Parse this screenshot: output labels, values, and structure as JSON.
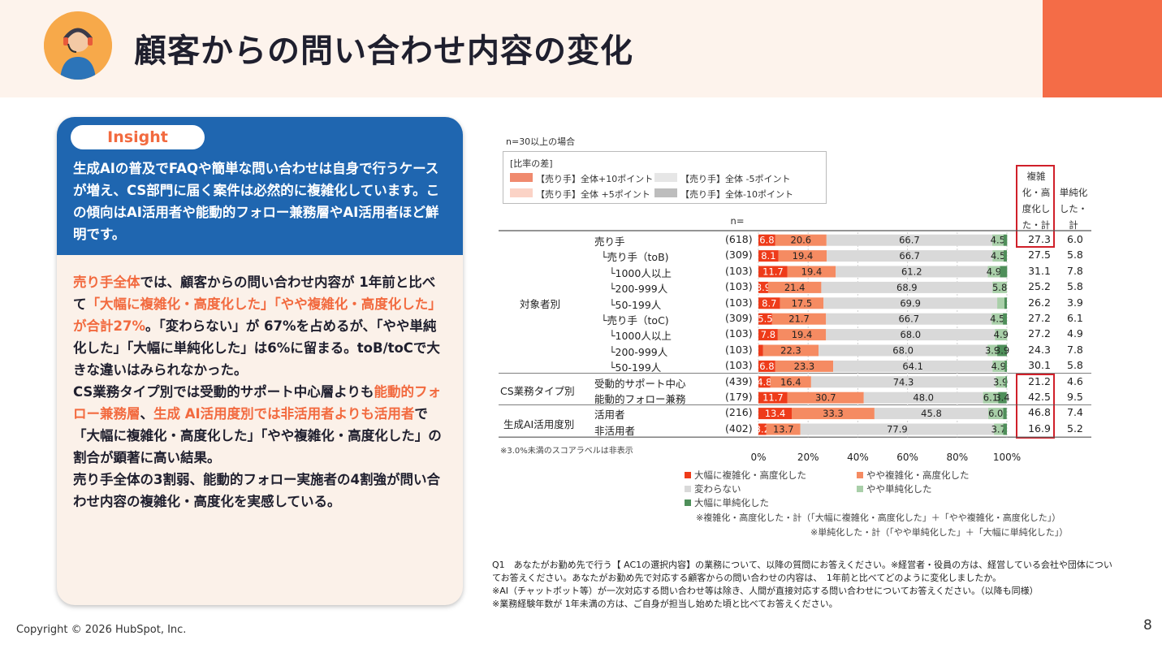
{
  "header": {
    "title": "顧客からの問い合わせ内容の変化"
  },
  "insight": {
    "label": "Insight",
    "text": "生成AIの普及でFAQや簡単な問い合わせは自身で行うケースが増え、CS部門に届く案件は必然的に複雑化しています。この傾向はAI活用者や能動的フォロー兼務層やAI活用者ほど鮮明です。"
  },
  "body": {
    "p1_a": "売り手全体",
    "p1_b": "では、顧客からの問い合わせ内容が 1年前と比べて",
    "p1_c": "「大幅に複雑化・高度化した」「やや複雑化・高度化した」が合計27%",
    "p1_d": "。「変わらない」が 67%を占めるが、「やや単純化した」「大幅に単純化した」は6%に留まる。toB/toCで大きな違いはみられなかった。",
    "p2_a": "CS業務タイプ別では受動的サポート中心層よりも",
    "p2_b": "能動的フォロー兼務層",
    "p2_c": "、",
    "p2_d": "生成 AI活用度別では非活用者よりも活用者",
    "p2_e": "で「大幅に複雑化・高度化した」「やや複雑化・高度化した」の割合が顕著に高い結果。",
    "p3": "売り手全体の3割弱、能動的フォロー実施者の4割強が問い合わせ内容の複雑化・高度化を実感している。"
  },
  "chart_note": "n=30以上の場合",
  "legend_box": {
    "title": "[比率の差]",
    "items": [
      "【売り手】全体+10ポイント",
      "【売り手】全体 +5ポイント",
      "【売り手】全体 -5ポイント",
      "【売り手】全体-10ポイント"
    ],
    "colors": [
      "#f08a6e",
      "#fbd3c6",
      "#e6e6e6",
      "#bdbdbd"
    ]
  },
  "col_headers": {
    "n": "n=",
    "complex": "複雑化・高度化した・計",
    "simple": "単純化した・計"
  },
  "group_labels": {
    "target": "対象者別",
    "cs": "CS業務タイプ別",
    "ai": "生成AI活用度別"
  },
  "annotation_under": "※3.0%未満のスコアラベルは非表示",
  "colors": {
    "dark_red": "#ee3b1a",
    "salmon": "#f58b62",
    "gray": "#d9d9d9",
    "light_green": "#a9cfa9",
    "dark_green": "#4f8f5a",
    "accent": "#f46c47",
    "blue": "#1f66b0"
  },
  "chart_data": {
    "type": "bar",
    "orientation": "horizontal-stacked-100",
    "series": [
      {
        "name": "大幅に複雑化・高度化した"
      },
      {
        "name": "やや複雑化・高度化した"
      },
      {
        "name": "変わらない"
      },
      {
        "name": "やや単純化した"
      },
      {
        "name": "大幅に単純化した"
      }
    ],
    "xlim": [
      0,
      100
    ],
    "xticks": [
      "0%",
      "20%",
      "40%",
      "60%",
      "80%",
      "100%"
    ],
    "rows": [
      {
        "label": "売り手",
        "n": "(618)",
        "values": [
          6.8,
          20.6,
          66.7,
          4.5,
          1.5
        ],
        "labels": [
          "6.8",
          "20.6",
          "66.7",
          "4.5",
          ""
        ],
        "complex": "27.3",
        "simple": "6.0"
      },
      {
        "label": "└売り手（toB)",
        "n": "(309)",
        "values": [
          8.1,
          19.4,
          66.7,
          4.5,
          1.3
        ],
        "labels": [
          "8.1",
          "19.4",
          "66.7",
          "4.5",
          ""
        ],
        "complex": "27.5",
        "simple": "5.8"
      },
      {
        "label": "└1000人以上",
        "n": "(103)",
        "values": [
          11.7,
          19.4,
          61.2,
          4.9,
          2.9
        ],
        "labels": [
          "11.7",
          "19.4",
          "61.2",
          "4.9",
          ""
        ],
        "complex": "31.1",
        "simple": "7.8"
      },
      {
        "label": "└200-999人",
        "n": "(103)",
        "values": [
          3.9,
          21.4,
          68.9,
          5.8,
          0
        ],
        "labels": [
          "3.9",
          "21.4",
          "68.9",
          "5.8",
          ""
        ],
        "complex": "25.2",
        "simple": "5.8"
      },
      {
        "label": "└50-199人",
        "n": "(103)",
        "values": [
          8.7,
          17.5,
          69.9,
          2.9,
          1.0
        ],
        "labels": [
          "8.7",
          "17.5",
          "69.9",
          "",
          ""
        ],
        "complex": "26.2",
        "simple": "3.9"
      },
      {
        "label": "└売り手（toC)",
        "n": "(309)",
        "values": [
          5.5,
          21.7,
          66.7,
          4.5,
          1.6
        ],
        "labels": [
          "5.5",
          "21.7",
          "66.7",
          "4.5",
          ""
        ],
        "complex": "27.2",
        "simple": "6.1"
      },
      {
        "label": "└1000人以上",
        "n": "(103)",
        "values": [
          7.8,
          19.4,
          68.0,
          4.9,
          0
        ],
        "labels": [
          "7.8",
          "19.4",
          "68.0",
          "4.9",
          ""
        ],
        "complex": "27.2",
        "simple": "4.9"
      },
      {
        "label": "└200-999人",
        "n": "(103)",
        "values": [
          1.9,
          22.3,
          68.0,
          3.9,
          3.9
        ],
        "labels": [
          "",
          "22.3",
          "68.0",
          "3.9",
          "3.9"
        ],
        "complex": "24.3",
        "simple": "7.8"
      },
      {
        "label": "└50-199人",
        "n": "(103)",
        "values": [
          6.8,
          23.3,
          64.1,
          4.9,
          0.9
        ],
        "labels": [
          "6.8",
          "23.3",
          "64.1",
          "4.9",
          ""
        ],
        "complex": "30.1",
        "simple": "5.8"
      },
      {
        "label": "受動的サポート中心",
        "n": "(439)",
        "values": [
          4.8,
          16.4,
          74.3,
          3.9,
          0.6
        ],
        "labels": [
          "4.8",
          "16.4",
          "74.3",
          "3.9",
          ""
        ],
        "complex": "21.2",
        "simple": "4.6"
      },
      {
        "label": "能動的フォロー兼務",
        "n": "(179)",
        "values": [
          11.7,
          30.7,
          48.0,
          6.1,
          3.4
        ],
        "labels": [
          "11.7",
          "30.7",
          "48.0",
          "6.1",
          "3.4"
        ],
        "complex": "42.5",
        "simple": "9.5"
      },
      {
        "label": "活用者",
        "n": "(216)",
        "values": [
          13.4,
          33.3,
          45.8,
          6.0,
          1.4
        ],
        "labels": [
          "13.4",
          "33.3",
          "45.8",
          "6.0",
          ""
        ],
        "complex": "46.8",
        "simple": "7.4"
      },
      {
        "label": "非活用者",
        "n": "(402)",
        "values": [
          3.2,
          13.7,
          77.9,
          3.7,
          1.5
        ],
        "labels": [
          "3.2",
          "13.7",
          "77.9",
          "3.7",
          ""
        ],
        "complex": "16.9",
        "simple": "5.2"
      }
    ]
  },
  "series_legend": [
    "大幅に複雑化・高度化した",
    "やや複雑化・高度化した",
    "変わらない",
    "やや単純化した",
    "大幅に単純化した"
  ],
  "formula_notes": [
    "※複雑化・高度化した・計（「大幅に複雑化・高度化した」＋「やや複雑化・高度化した」）",
    "※単純化した・計（「やや単純化した」＋「大幅に単純化した」）"
  ],
  "question": {
    "q1": "Q1　あなたがお勤め先で行う【 AC1の選択内容】の業務について、以降の質問にお答えください。※経営者・役員の方は、経営している会社や団体についてお答えください。あなたがお勤め先で対応する顧客からの問い合わせの内容は、　1年前と比べてどのように変化しましたか。",
    "n1": "※AI（チャットボット等）が一次対応する問い合わせ等は除き、人間が直接対応する問い合わせについてお答えください。（以降も同様）",
    "n2": "※業務経験年数が 1年未満の方は、ご自身が担当し始めた頃と比べてお答えください。"
  },
  "footer": {
    "copyright": "Copyright © 2026 HubSpot, Inc.",
    "page": "8"
  }
}
